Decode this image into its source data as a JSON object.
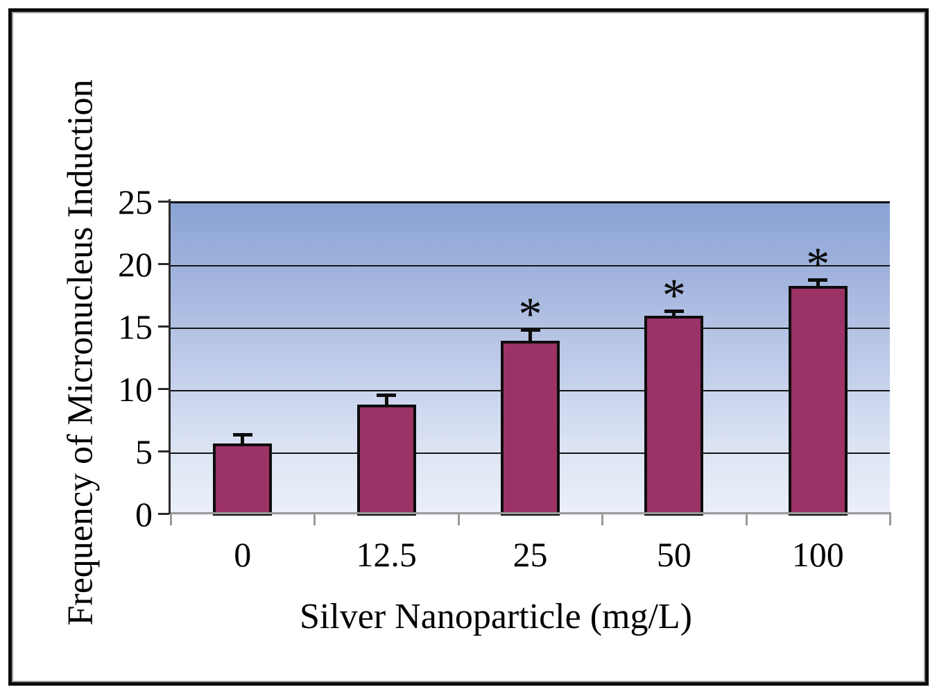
{
  "figure": {
    "border_color": "#0b0b0b",
    "background_color": "#ffffff"
  },
  "chart_data": {
    "type": "bar",
    "title": "",
    "xlabel": "Silver Nanoparticle (mg/L)",
    "ylabel": "Frequency of Micronucleus Induction",
    "categories": [
      "0",
      "12.5",
      "25",
      "50",
      "100"
    ],
    "values": [
      5.8,
      8.9,
      14,
      16,
      18.4
    ],
    "error_plus": [
      0.8,
      0.9,
      1.0,
      0.5,
      0.6
    ],
    "significant": [
      false,
      false,
      true,
      true,
      true
    ],
    "significance_marker": "*",
    "ylim": [
      0,
      25
    ],
    "yticks": [
      0,
      5,
      10,
      15,
      20,
      25
    ],
    "grid": true,
    "legend_position": "none",
    "bar_color": "#9b3366",
    "bar_border_color": "#0d0d0d",
    "error_bar_color": "#0d0d0d",
    "gridline_color": "#151515",
    "x_axis_color": "#9a9a9a",
    "plot_bg_gradient_top": "#8aa3d4",
    "plot_bg_gradient_bottom": "#ebf0fa"
  }
}
